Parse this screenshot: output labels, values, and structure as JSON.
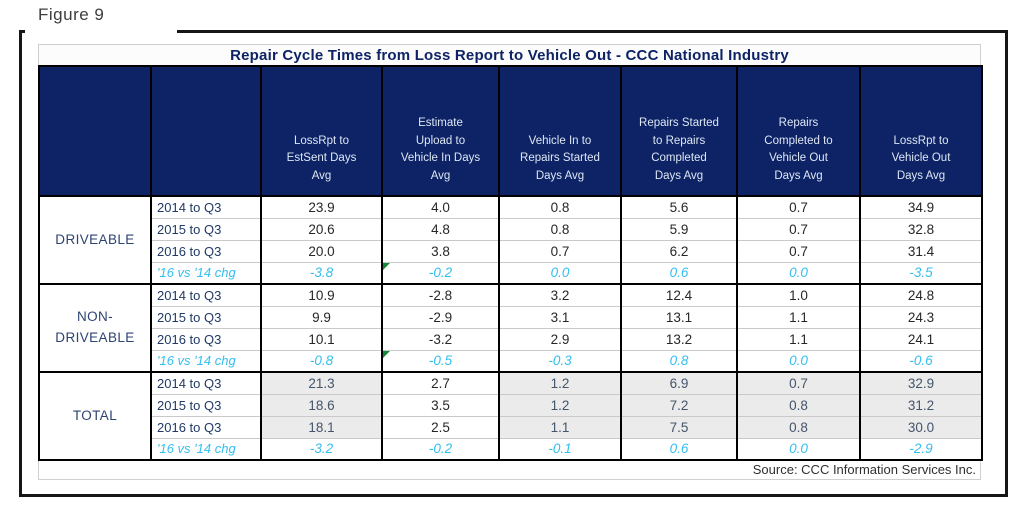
{
  "figure_label": "Figure 9",
  "table": {
    "title": "Repair Cycle Times from Loss Report to Vehicle Out - CCC National Industry",
    "columns": [
      "LossRpt to\nEstSent Days\nAvg",
      "Estimate\nUpload to\nVehicle In Days\nAvg",
      "Vehicle In to\nRepairs Started\nDays Avg",
      "Repairs Started\nto Repairs\nCompleted\nDays Avg",
      "Repairs\nCompleted to\nVehicle Out\nDays Avg",
      "LossRpt to\nVehicle Out\nDays Avg"
    ],
    "groups": [
      {
        "label": "DRIVEABLE",
        "slug": "driveable",
        "shaded": false,
        "rows": [
          {
            "period": "2014 to Q3",
            "type": "data",
            "values": [
              "23.9",
              "4.0",
              "0.8",
              "5.6",
              "0.7",
              "34.9"
            ]
          },
          {
            "period": "2015 to Q3",
            "type": "data",
            "values": [
              "20.6",
              "4.8",
              "0.8",
              "5.9",
              "0.7",
              "32.8"
            ]
          },
          {
            "period": "2016 to Q3",
            "type": "data",
            "values": [
              "20.0",
              "3.8",
              "0.7",
              "6.2",
              "0.7",
              "31.4"
            ]
          },
          {
            "period": "'16 vs '14 chg",
            "type": "chg",
            "values": [
              "-3.8",
              "-0.2",
              "0.0",
              "0.6",
              "0.0",
              "-3.5"
            ]
          }
        ]
      },
      {
        "label": "NON-\nDRIVEABLE",
        "slug": "non-driveable",
        "shaded": false,
        "rows": [
          {
            "period": "2014 to Q3",
            "type": "data",
            "values": [
              "10.9",
              "-2.8",
              "3.2",
              "12.4",
              "1.0",
              "24.8"
            ]
          },
          {
            "period": "2015 to Q3",
            "type": "data",
            "values": [
              "9.9",
              "-2.9",
              "3.1",
              "13.1",
              "1.1",
              "24.3"
            ]
          },
          {
            "period": "2016 to Q3",
            "type": "data",
            "values": [
              "10.1",
              "-3.2",
              "2.9",
              "13.2",
              "1.1",
              "24.1"
            ]
          },
          {
            "period": "'16 vs '14 chg",
            "type": "chg",
            "values": [
              "-0.8",
              "-0.5",
              "-0.3",
              "0.8",
              "0.0",
              "-0.6"
            ]
          }
        ]
      },
      {
        "label": "TOTAL",
        "slug": "total",
        "shaded": true,
        "rows": [
          {
            "period": "2014 to Q3",
            "type": "data",
            "values": [
              "21.3",
              "2.7",
              "1.2",
              "6.9",
              "0.7",
              "32.9"
            ]
          },
          {
            "period": "2015 to Q3",
            "type": "data",
            "values": [
              "18.6",
              "3.5",
              "1.2",
              "7.2",
              "0.8",
              "31.2"
            ]
          },
          {
            "period": "2016 to Q3",
            "type": "data",
            "values": [
              "18.1",
              "2.5",
              "1.1",
              "7.5",
              "0.8",
              "30.0"
            ]
          },
          {
            "period": "'16 vs '14 chg",
            "type": "chg",
            "values": [
              "-3.2",
              "-0.2",
              "-0.1",
              "0.6",
              "0.0",
              "-2.9"
            ]
          }
        ]
      }
    ],
    "unshaded_column_index": 1,
    "change_flags": [
      {
        "group": 0,
        "row": 3,
        "col": 1
      },
      {
        "group": 1,
        "row": 3,
        "col": 1
      }
    ],
    "source": "Source: CCC Information Services Inc."
  },
  "colors": {
    "header_bg": "#0d2365",
    "header_text": "#dde6f4",
    "title_text": "#0d2365",
    "period_text": "#1f3a68",
    "group_text": "#2d4373",
    "value_text": "#272727",
    "change_text": "#33bfee",
    "total_shaded_bg": "#ebebeb",
    "total_shaded_text": "#44546a",
    "flag_green": "#178a3a",
    "border_black": "#000000",
    "row_divider_gray": "#c9c9c9"
  }
}
